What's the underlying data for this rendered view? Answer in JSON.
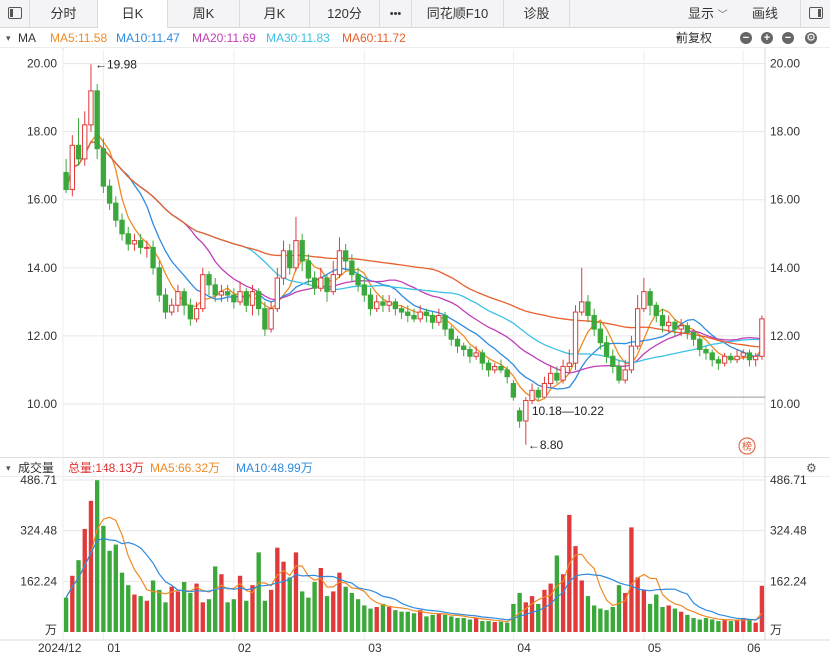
{
  "toolbar": {
    "tabs": [
      {
        "label": "分时",
        "active": false
      },
      {
        "label": "日K",
        "active": true
      },
      {
        "label": "周K",
        "active": false
      },
      {
        "label": "月K",
        "active": false
      },
      {
        "label": "120分",
        "active": false
      },
      {
        "label": "•••",
        "active": false
      },
      {
        "label": "同花顺F10",
        "active": false
      },
      {
        "label": "诊股",
        "active": false
      }
    ],
    "display_label": "显示",
    "draw_label": "画线"
  },
  "price_legend": {
    "name": "MA",
    "items": [
      {
        "label": "MA5:11.58",
        "color": "#f08a24"
      },
      {
        "label": "MA10:11.47",
        "color": "#2d8be0"
      },
      {
        "label": "MA20:11.69",
        "color": "#c03fb8"
      },
      {
        "label": "MA30:11.83",
        "color": "#3cc0e6"
      },
      {
        "label": "MA60:11.72",
        "color": "#e8602c"
      }
    ],
    "adjust_label": "前复权"
  },
  "volume_legend": {
    "name": "成交量",
    "items": [
      {
        "label": "总量:148.13万",
        "color": "#e03030"
      },
      {
        "label": "MA5:66.32万",
        "color": "#f08a24"
      },
      {
        "label": "MA10:48.99万",
        "color": "#2d8be0"
      }
    ]
  },
  "annotations": {
    "high": "←19.98",
    "low": "←8.80",
    "range": "10.18—10.22",
    "badge": "榜"
  },
  "colors": {
    "up": "#e03a3a",
    "down": "#3aa83a",
    "grid": "#e6e6e6"
  },
  "chart_data": [
    {
      "type": "candlestick",
      "title": "",
      "x_ticks": [
        "2024/12",
        "01",
        "02",
        "03",
        "04",
        "05",
        "06"
      ],
      "y_ticks": [
        "20.00",
        "18.00",
        "16.00",
        "14.00",
        "12.00",
        "10.00"
      ],
      "ylim": [
        8.5,
        20.4
      ],
      "grid": true,
      "candles": [
        [
          16.8,
          16.3,
          17.2,
          16.2
        ],
        [
          16.3,
          17.6,
          17.9,
          16.1
        ],
        [
          17.6,
          17.2,
          18.4,
          17.0
        ],
        [
          17.2,
          18.2,
          18.6,
          17.0
        ],
        [
          18.2,
          19.2,
          19.98,
          18.0
        ],
        [
          19.2,
          17.5,
          19.4,
          17.2
        ],
        [
          17.5,
          16.4,
          17.8,
          16.2
        ],
        [
          16.4,
          15.9,
          16.6,
          15.7
        ],
        [
          15.9,
          15.4,
          16.1,
          15.2
        ],
        [
          15.4,
          15.0,
          15.6,
          14.8
        ],
        [
          15.0,
          14.7,
          15.2,
          14.5
        ],
        [
          14.7,
          14.8,
          15.0,
          14.5
        ],
        [
          14.8,
          14.6,
          15.0,
          14.4
        ],
        [
          14.6,
          14.6,
          14.8,
          14.3
        ],
        [
          14.6,
          14.0,
          14.8,
          13.8
        ],
        [
          14.0,
          13.2,
          14.2,
          13.0
        ],
        [
          13.2,
          12.7,
          13.4,
          12.5
        ],
        [
          12.7,
          12.9,
          13.1,
          12.6
        ],
        [
          12.9,
          13.3,
          13.5,
          12.7
        ],
        [
          13.3,
          12.9,
          13.4,
          12.6
        ],
        [
          12.9,
          12.5,
          13.1,
          12.3
        ],
        [
          12.5,
          12.8,
          13.0,
          12.4
        ],
        [
          12.8,
          13.8,
          14.0,
          12.7
        ],
        [
          13.8,
          13.5,
          13.9,
          13.2
        ],
        [
          13.5,
          13.2,
          13.7,
          13.0
        ],
        [
          13.2,
          13.3,
          13.5,
          13.0
        ],
        [
          13.3,
          13.2,
          13.5,
          13.0
        ],
        [
          13.2,
          13.0,
          13.4,
          12.8
        ],
        [
          13.0,
          13.3,
          13.6,
          12.9
        ],
        [
          13.3,
          12.9,
          13.4,
          12.7
        ],
        [
          12.9,
          13.3,
          13.5,
          12.6
        ],
        [
          13.3,
          12.8,
          13.4,
          12.6
        ],
        [
          12.8,
          12.2,
          13.0,
          12.0
        ],
        [
          12.2,
          12.8,
          13.0,
          12.1
        ],
        [
          12.8,
          13.7,
          14.0,
          12.7
        ],
        [
          13.7,
          14.5,
          14.8,
          13.5
        ],
        [
          14.5,
          14.0,
          14.7,
          13.8
        ],
        [
          14.0,
          14.8,
          15.5,
          13.9
        ],
        [
          14.8,
          14.2,
          15.0,
          13.9
        ],
        [
          14.2,
          13.7,
          14.4,
          13.5
        ],
        [
          13.7,
          13.4,
          13.9,
          13.2
        ],
        [
          13.4,
          13.7,
          14.0,
          13.3
        ],
        [
          13.7,
          13.3,
          13.8,
          13.0
        ],
        [
          13.3,
          13.8,
          14.2,
          13.2
        ],
        [
          13.8,
          14.5,
          14.9,
          13.7
        ],
        [
          14.5,
          14.2,
          14.7,
          13.9
        ],
        [
          14.2,
          13.8,
          14.4,
          13.6
        ],
        [
          13.8,
          13.5,
          14.0,
          13.3
        ],
        [
          13.5,
          13.2,
          13.7,
          13.0
        ],
        [
          13.2,
          12.8,
          13.4,
          12.6
        ],
        [
          12.8,
          13.0,
          13.2,
          12.7
        ],
        [
          13.0,
          12.9,
          13.2,
          12.7
        ],
        [
          12.9,
          13.0,
          13.2,
          12.7
        ],
        [
          13.0,
          12.8,
          13.1,
          12.6
        ],
        [
          12.8,
          12.7,
          12.9,
          12.5
        ],
        [
          12.7,
          12.6,
          12.9,
          12.4
        ],
        [
          12.6,
          12.5,
          12.8,
          12.4
        ],
        [
          12.5,
          12.7,
          12.9,
          12.4
        ],
        [
          12.7,
          12.6,
          12.8,
          12.4
        ],
        [
          12.6,
          12.4,
          12.7,
          12.2
        ],
        [
          12.4,
          12.6,
          12.8,
          12.3
        ],
        [
          12.6,
          12.2,
          12.7,
          12.0
        ],
        [
          12.2,
          11.9,
          12.3,
          11.7
        ],
        [
          11.9,
          11.7,
          12.0,
          11.5
        ],
        [
          11.7,
          11.6,
          11.8,
          11.4
        ],
        [
          11.6,
          11.4,
          11.7,
          11.2
        ],
        [
          11.4,
          11.5,
          11.7,
          11.3
        ],
        [
          11.5,
          11.2,
          11.6,
          11.0
        ],
        [
          11.2,
          11.0,
          11.3,
          10.8
        ],
        [
          11.0,
          11.1,
          11.2,
          10.9
        ],
        [
          11.1,
          11.0,
          11.3,
          10.9
        ],
        [
          11.0,
          10.8,
          11.1,
          10.6
        ],
        [
          10.6,
          10.2,
          10.7,
          10.1
        ],
        [
          9.8,
          9.5,
          9.9,
          9.3
        ],
        [
          9.5,
          10.1,
          10.2,
          8.8
        ],
        [
          10.1,
          10.4,
          10.6,
          10.0
        ],
        [
          10.4,
          10.2,
          10.5,
          10.1
        ],
        [
          10.2,
          10.6,
          10.8,
          10.18
        ],
        [
          10.6,
          10.9,
          11.1,
          10.5
        ],
        [
          10.9,
          10.7,
          11.1,
          10.6
        ],
        [
          10.7,
          11.1,
          11.3,
          10.6
        ],
        [
          11.1,
          11.2,
          11.6,
          10.9
        ],
        [
          11.2,
          12.7,
          12.9,
          11.0
        ],
        [
          12.7,
          13.0,
          14.0,
          12.6
        ],
        [
          13.0,
          12.6,
          13.2,
          12.4
        ],
        [
          12.6,
          12.2,
          12.8,
          12.0
        ],
        [
          12.2,
          11.8,
          12.4,
          11.6
        ],
        [
          11.8,
          11.4,
          12.0,
          11.2
        ],
        [
          11.4,
          11.1,
          11.6,
          10.9
        ],
        [
          11.1,
          10.7,
          11.3,
          10.6
        ],
        [
          10.7,
          11.0,
          11.3,
          10.6
        ],
        [
          11.0,
          11.7,
          12.0,
          10.9
        ],
        [
          11.7,
          12.8,
          13.2,
          11.6
        ],
        [
          12.8,
          13.3,
          13.7,
          12.7
        ],
        [
          13.3,
          12.9,
          13.4,
          12.6
        ],
        [
          12.9,
          12.6,
          13.0,
          12.4
        ],
        [
          12.6,
          12.3,
          12.8,
          12.1
        ],
        [
          12.3,
          12.4,
          12.6,
          12.1
        ],
        [
          12.4,
          12.2,
          12.5,
          12.0
        ],
        [
          12.2,
          12.3,
          12.5,
          12.0
        ],
        [
          12.3,
          12.1,
          12.4,
          11.9
        ],
        [
          12.1,
          11.9,
          12.2,
          11.7
        ],
        [
          11.9,
          11.6,
          12.0,
          11.4
        ],
        [
          11.6,
          11.5,
          11.7,
          11.3
        ],
        [
          11.5,
          11.3,
          11.6,
          11.1
        ],
        [
          11.3,
          11.2,
          11.4,
          11.0
        ],
        [
          11.2,
          11.4,
          11.5,
          11.1
        ],
        [
          11.4,
          11.3,
          11.5,
          11.2
        ],
        [
          11.3,
          11.4,
          11.6,
          11.2
        ],
        [
          11.4,
          11.5,
          11.6,
          11.3
        ],
        [
          11.5,
          11.3,
          11.6,
          11.1
        ],
        [
          11.3,
          11.4,
          11.5,
          11.1
        ],
        [
          11.4,
          12.5,
          12.6,
          11.3
        ]
      ]
    },
    {
      "type": "bar",
      "title": "",
      "unit": "万",
      "y_ticks": [
        "486.71",
        "324.48",
        "162.24"
      ],
      "ylim": [
        0,
        486.71
      ],
      "volumes": [
        110,
        180,
        230,
        330,
        420,
        486,
        340,
        260,
        280,
        190,
        150,
        120,
        115,
        100,
        165,
        135,
        95,
        145,
        130,
        160,
        125,
        155,
        95,
        105,
        210,
        185,
        95,
        105,
        180,
        100,
        150,
        255,
        100,
        135,
        270,
        225,
        175,
        255,
        130,
        110,
        160,
        205,
        115,
        130,
        190,
        145,
        125,
        105,
        85,
        75,
        80,
        90,
        80,
        70,
        65,
        65,
        60,
        70,
        50,
        55,
        60,
        55,
        50,
        45,
        45,
        40,
        45,
        35,
        35,
        32,
        33,
        30,
        90,
        125,
        95,
        115,
        90,
        135,
        155,
        245,
        185,
        375,
        275,
        165,
        115,
        85,
        75,
        70,
        80,
        150,
        125,
        335,
        175,
        135,
        90,
        120,
        80,
        85,
        75,
        65,
        55,
        45,
        40,
        45,
        40,
        35,
        38,
        35,
        40,
        45,
        40,
        30,
        148
      ]
    }
  ]
}
